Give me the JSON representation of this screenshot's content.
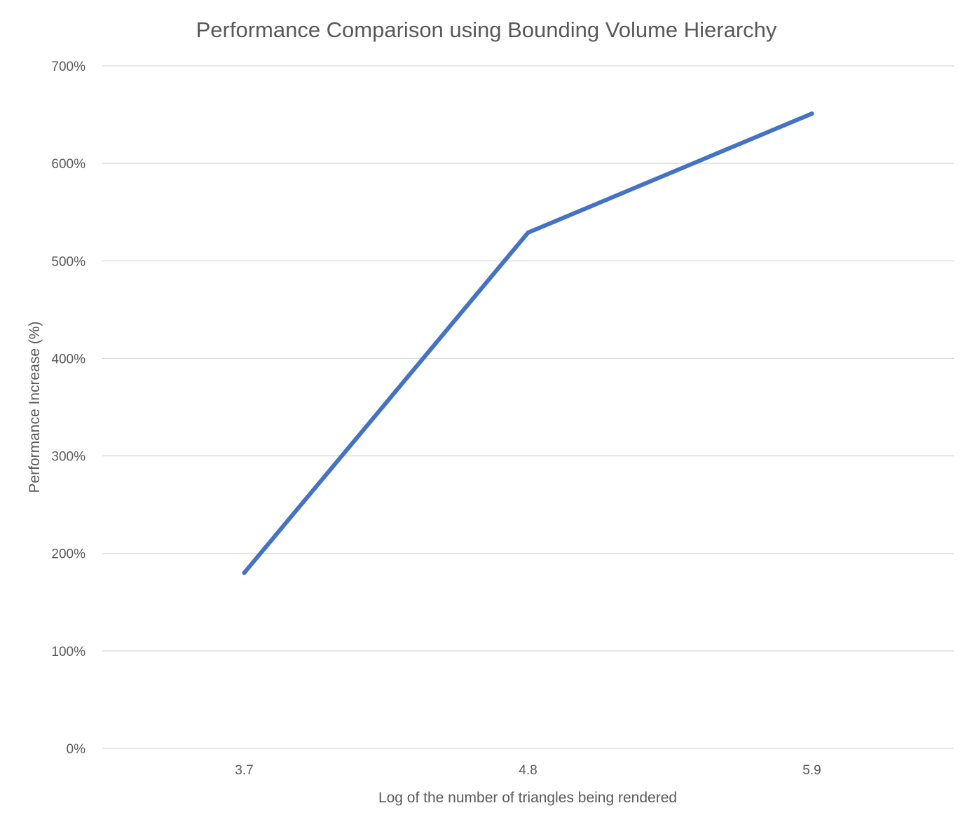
{
  "chart_data": {
    "type": "line",
    "title": "Performance Comparison using Bounding Volume Hierarchy",
    "xlabel": "Log of the number of triangles being rendered",
    "ylabel": "Performance Increase (%)",
    "categories": [
      "3.7",
      "4.8",
      "5.9"
    ],
    "series": [
      {
        "values": [
          180,
          529,
          651
        ],
        "color": "#4472c4"
      }
    ],
    "ylim": [
      0,
      700
    ],
    "yticks": [
      0,
      100,
      200,
      300,
      400,
      500,
      600,
      700
    ],
    "ytick_labels": [
      "0%",
      "100%",
      "200%",
      "300%",
      "400%",
      "500%",
      "600%",
      "700%"
    ],
    "grid": true,
    "legend": "none"
  }
}
